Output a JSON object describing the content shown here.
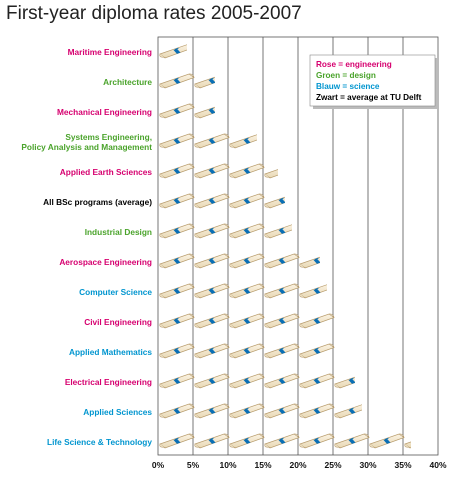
{
  "chart_data": {
    "type": "bar",
    "title": "First-year diploma rates 2005-2007",
    "xlabel": "",
    "ylabel": "",
    "xlim": [
      0,
      40
    ],
    "x_ticks": [
      "0%",
      "5%",
      "10%",
      "15%",
      "20%",
      "25%",
      "30%",
      "35%",
      "40%"
    ],
    "grid": true,
    "legend_position": "top-right",
    "legend": [
      {
        "text": "Rose = engineering",
        "color": "#d6006f"
      },
      {
        "text": "Groen = design",
        "color": "#4aa32b"
      },
      {
        "text": "Blauw = science",
        "color": "#0095cf"
      },
      {
        "text": "Zwart = average at TU Delft",
        "color": "#000000"
      }
    ],
    "categories": [
      {
        "label": "Maritime Engineering",
        "group": "engineering",
        "value": 4
      },
      {
        "label": "Architecture",
        "group": "design",
        "value": 8
      },
      {
        "label": "Mechanical Engineering",
        "group": "engineering",
        "value": 8
      },
      {
        "label": "Systems Engineering, Policy Analysis and Management",
        "group": "design",
        "value": 14
      },
      {
        "label": "Applied Earth Sciences",
        "group": "engineering",
        "value": 17
      },
      {
        "label": "All BSc programs (average)",
        "group": "average",
        "value": 18
      },
      {
        "label": "Industrial Design",
        "group": "design",
        "value": 19
      },
      {
        "label": "Aerospace Engineering",
        "group": "engineering",
        "value": 23
      },
      {
        "label": "Computer Science",
        "group": "science",
        "value": 24
      },
      {
        "label": "Civil Engineering",
        "group": "engineering",
        "value": 25
      },
      {
        "label": "Applied Mathematics",
        "group": "science",
        "value": 25
      },
      {
        "label": "Electrical Engineering",
        "group": "engineering",
        "value": 28
      },
      {
        "label": "Applied Sciences",
        "group": "science",
        "value": 29
      },
      {
        "label": "Life Science & Technology",
        "group": "science",
        "value": 36
      }
    ]
  }
}
